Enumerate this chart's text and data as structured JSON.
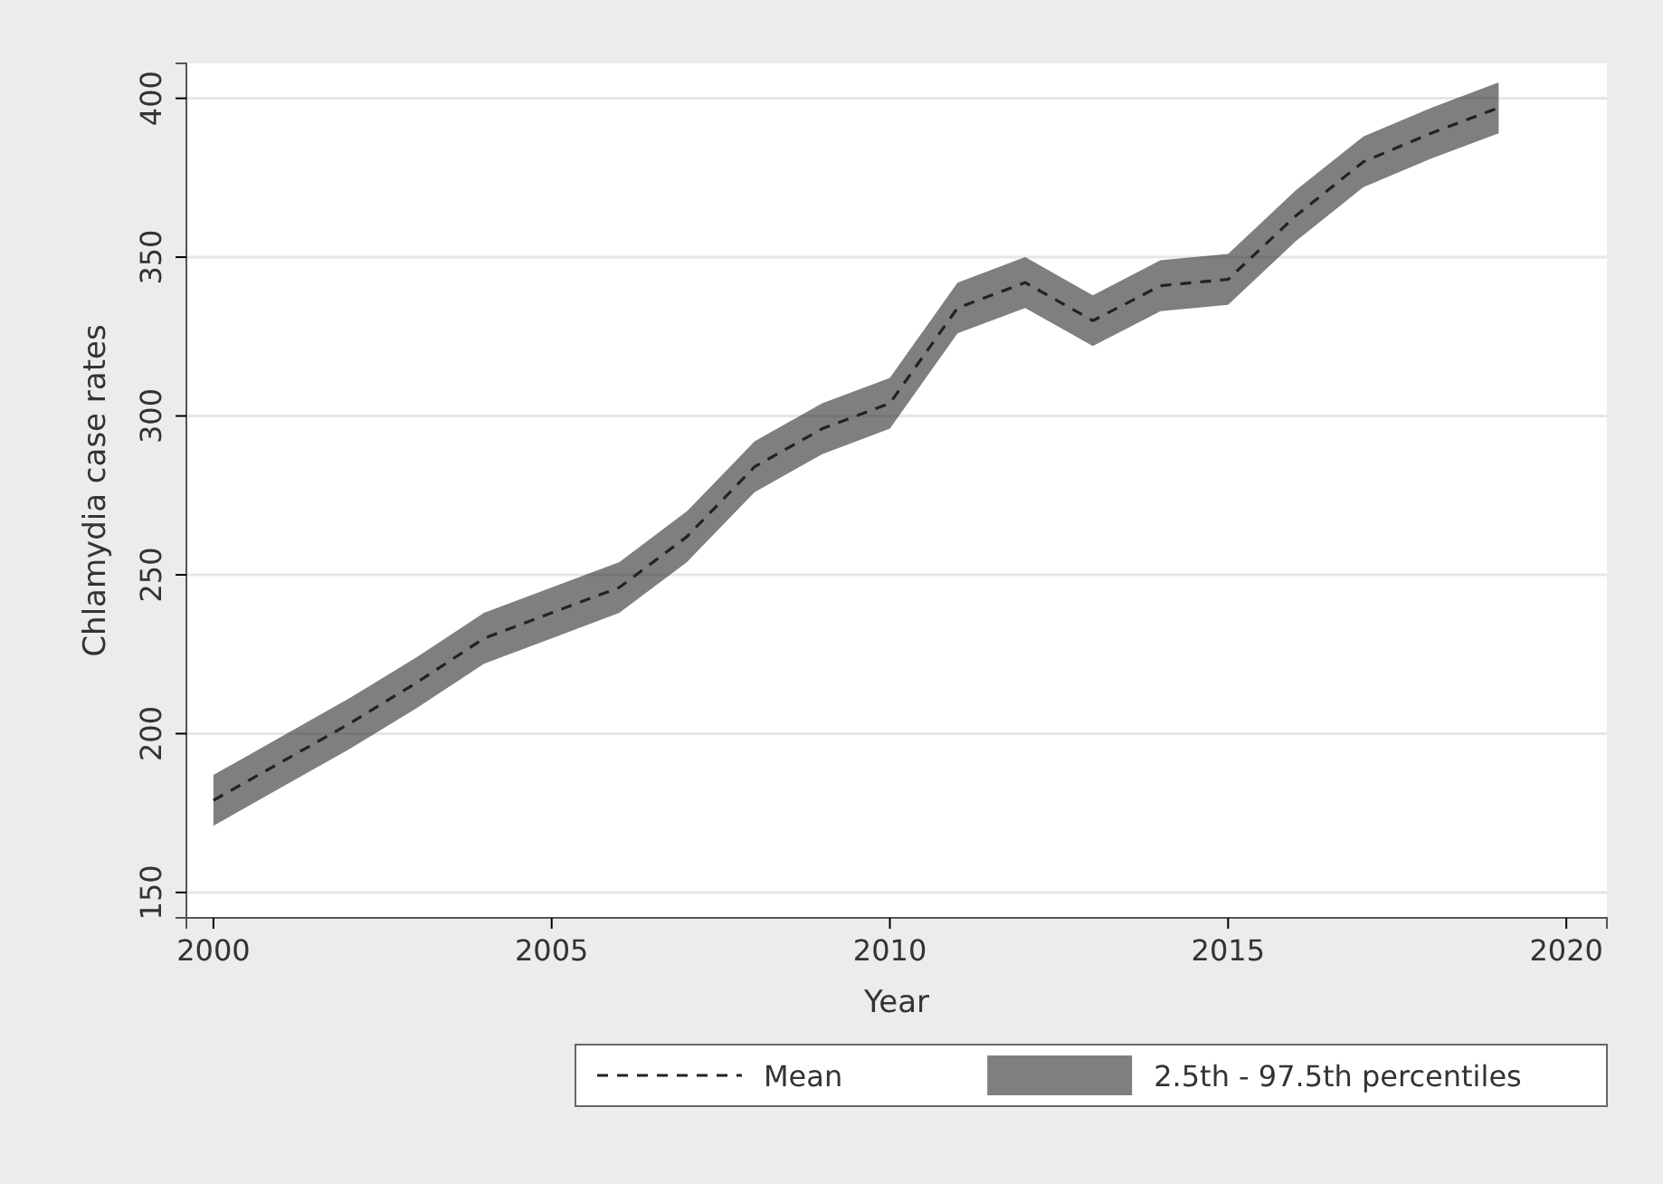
{
  "chart_data": {
    "type": "line",
    "xlabel": "Year",
    "ylabel": "Chlamydia case rates",
    "x": [
      2000,
      2001,
      2002,
      2003,
      2004,
      2005,
      2006,
      2007,
      2008,
      2009,
      2010,
      2011,
      2012,
      2013,
      2014,
      2015,
      2016,
      2017,
      2018,
      2019
    ],
    "xlim": [
      1999.6,
      2020.6
    ],
    "xticks": [
      2000,
      2005,
      2010,
      2015,
      2020
    ],
    "ylim": [
      142,
      411
    ],
    "yticks": [
      150,
      200,
      250,
      300,
      350,
      400
    ],
    "grid": "y",
    "legend": "bottom",
    "annotations": [
      "2.5th - 97.5th percentiles"
    ],
    "series": [
      {
        "name": "Mean",
        "type": "line",
        "color": "#222222",
        "line_style": "dashed",
        "values": [
          179,
          191,
          203,
          216,
          230,
          238,
          246,
          262,
          284,
          296,
          304,
          334,
          342,
          330,
          341,
          343,
          363,
          380,
          389,
          397
        ],
        "lower": [
          171,
          183,
          195,
          208,
          222,
          230,
          238,
          254,
          276,
          288,
          296,
          326,
          334,
          322,
          333,
          335,
          355,
          372,
          381,
          389
        ],
        "upper": [
          187,
          199,
          211,
          224,
          238,
          246,
          254,
          270,
          292,
          304,
          312,
          342,
          350,
          338,
          349,
          351,
          371,
          388,
          397,
          405
        ]
      }
    ]
  }
}
